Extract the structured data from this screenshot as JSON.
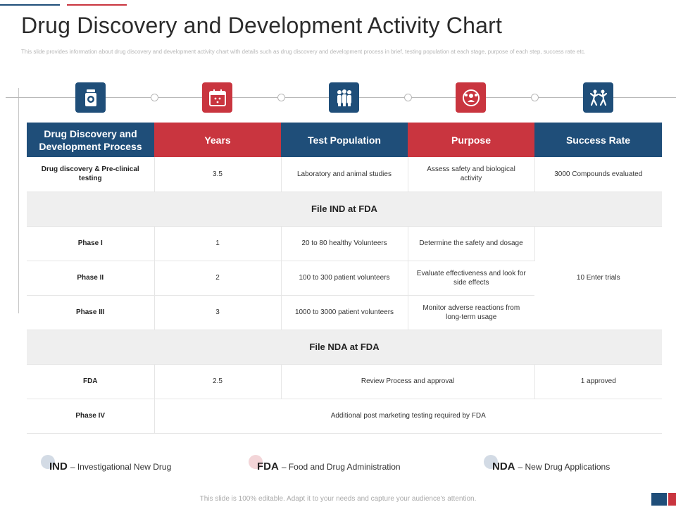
{
  "title": "Drug Discovery and Development Activity Chart",
  "subtitle": "This slide provides information about drug discovery and development activity chart with details such as drug discovery and development process in brief, testing population at each stage, purpose of each step, success rate etc.",
  "icons": [
    "pill-bottle-icon",
    "calendar-icon",
    "group-of-people-icon",
    "target-people-icon",
    "celebrating-people-icon"
  ],
  "colors": {
    "blue": "#1f4e79",
    "red": "#c9353f",
    "band": "#efefef"
  },
  "table": {
    "headers": [
      "Drug Discovery and Development Process",
      "Years",
      "Test Population",
      "Purpose",
      "Success Rate"
    ],
    "row_preclinical": {
      "stage": "Drug discovery & Pre-clinical testing",
      "years": "3.5",
      "population": "Laboratory and animal studies",
      "purpose": "Assess safety and biological activity",
      "success": "3000 Compounds evaluated"
    },
    "band_ind": "File IND at FDA",
    "phase1": {
      "stage": "Phase I",
      "years": "1",
      "population": "20 to 80 healthy Volunteers",
      "purpose": "Determine the safety and dosage"
    },
    "phase2": {
      "stage": "Phase II",
      "years": "2",
      "population": "100 to 300 patient volunteers",
      "purpose": "Evaluate effectiveness and look for side effects"
    },
    "phase3": {
      "stage": "Phase III",
      "years": "3",
      "population": "1000 to 3000 patient volunteers",
      "purpose": "Monitor adverse reactions from long-term usage"
    },
    "phases_success": "10 Enter trials",
    "band_nda": "File NDA at FDA",
    "fda": {
      "stage": "FDA",
      "years": "2.5",
      "review": "Review Process and approval",
      "success": "1 approved"
    },
    "phase4": {
      "stage": "Phase IV",
      "note": "Additional post marketing testing required by FDA"
    }
  },
  "legend": [
    {
      "abbr": "IND",
      "text": "– Investigational  New Drug"
    },
    {
      "abbr": "FDA",
      "text": "– Food  and Drug  Administration"
    },
    {
      "abbr": "NDA",
      "text": "– New Drug Applications"
    }
  ],
  "footer": "This slide is 100% editable. Adapt it to your needs and capture your audience's attention."
}
